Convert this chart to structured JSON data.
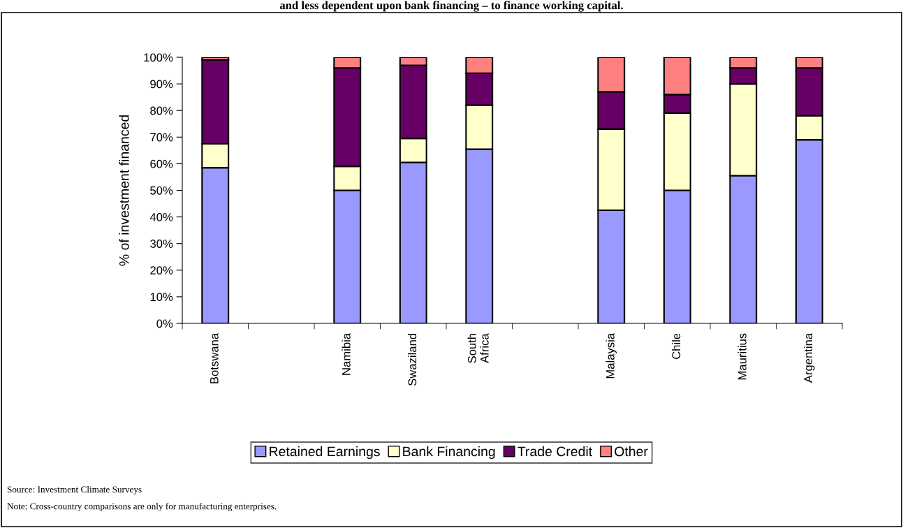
{
  "chart_data": {
    "type": "bar",
    "stacked": true,
    "title": "and less dependent upon bank financing – to finance working capital.",
    "ylabel": "% of investment financed",
    "categories": [
      "Botswana",
      null,
      "Namibia",
      "Swaziland",
      "South\nAfrica",
      null,
      "Malaysia",
      "Chile",
      "Mauritius",
      "Argentina"
    ],
    "series": [
      {
        "name": "Retained Earnings",
        "color": "#9999ff",
        "values": [
          58.5,
          null,
          50,
          60.5,
          65.5,
          null,
          42.5,
          50,
          55.5,
          69
        ]
      },
      {
        "name": "Bank Financing",
        "color": "#ffffcc",
        "values": [
          9,
          null,
          9,
          9,
          16.5,
          null,
          30.5,
          29,
          34.5,
          9
        ]
      },
      {
        "name": "Trade Credit",
        "color": "#660066",
        "values": [
          31.5,
          null,
          37,
          27.5,
          12,
          null,
          14,
          7,
          6,
          18
        ]
      },
      {
        "name": "Other",
        "color": "#ff8080",
        "values": [
          1,
          null,
          4,
          3,
          6,
          null,
          13,
          14,
          4,
          4
        ]
      }
    ],
    "ylim": [
      0,
      100
    ],
    "yticks": [
      {
        "value": 0,
        "label": "0%"
      },
      {
        "value": 10,
        "label": "10%"
      },
      {
        "value": 20,
        "label": "20%"
      },
      {
        "value": 30,
        "label": "30%"
      },
      {
        "value": 40,
        "label": "40%"
      },
      {
        "value": 50,
        "label": "50%"
      },
      {
        "value": 60,
        "label": "60%"
      },
      {
        "value": 70,
        "label": "70%"
      },
      {
        "value": 80,
        "label": "80%"
      },
      {
        "value": 90,
        "label": "90%"
      },
      {
        "value": 100,
        "label": "100%"
      }
    ],
    "grid": false,
    "legend": "bottom",
    "annotations": [
      "Source: Investment Climate Surveys",
      "Note: Cross-country comparisons are only for manufacturing enterprises."
    ]
  }
}
